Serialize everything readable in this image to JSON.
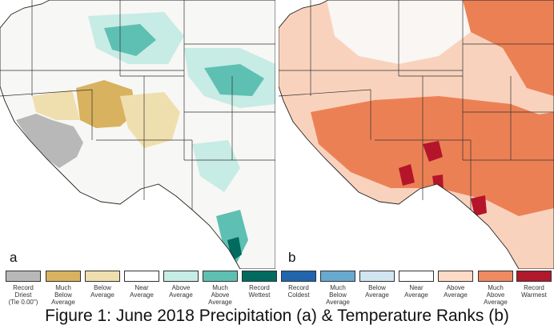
{
  "panel_a": {
    "letter": "a",
    "colors": {
      "record_driest": "#b8b8b8",
      "much_below": "#d8b25f",
      "below": "#f0dfae",
      "near": "#f7f7f5",
      "above": "#c7ebe5",
      "much_above": "#5ec0b2",
      "record_wettest": "#006b5e"
    }
  },
  "panel_b": {
    "letter": "b",
    "colors": {
      "near": "#f9f6f4",
      "above": "#f9d2bd",
      "much_above": "#ec8055",
      "record_warmest": "#b5152a"
    }
  },
  "legend": [
    {
      "label": "Record\nDriest",
      "note": "(Tie 0.00\")",
      "color": "#b8b8b8"
    },
    {
      "label": "Much\nBelow\nAverage",
      "color": "#d8b25f"
    },
    {
      "label": "Below\nAverage",
      "color": "#f0dfae"
    },
    {
      "label": "Near\nAverage",
      "color": "#ffffff"
    },
    {
      "label": "Above\nAverage",
      "color": "#c7ebe5"
    },
    {
      "label": "Much\nAbove\nAverage",
      "color": "#5ec0b2"
    },
    {
      "label": "Record\nWettest",
      "color": "#006b5e"
    },
    {
      "label": "Record\nColdest",
      "color": "#2166ac"
    },
    {
      "label": "Much\nBelow\nAverage",
      "color": "#67a9cf"
    },
    {
      "label": "Below\nAverage",
      "color": "#d1e5f0"
    },
    {
      "label": "Near\nAverage",
      "color": "#ffffff"
    },
    {
      "label": "Above\nAverage",
      "color": "#fddbc7"
    },
    {
      "label": "Much\nAbove\nAverage",
      "color": "#ef8a62"
    },
    {
      "label": "Record\nWarmest",
      "color": "#b2182b"
    }
  ],
  "caption": "Figure 1: June 2018 Precipitation (a) & Temperature Ranks (b)"
}
